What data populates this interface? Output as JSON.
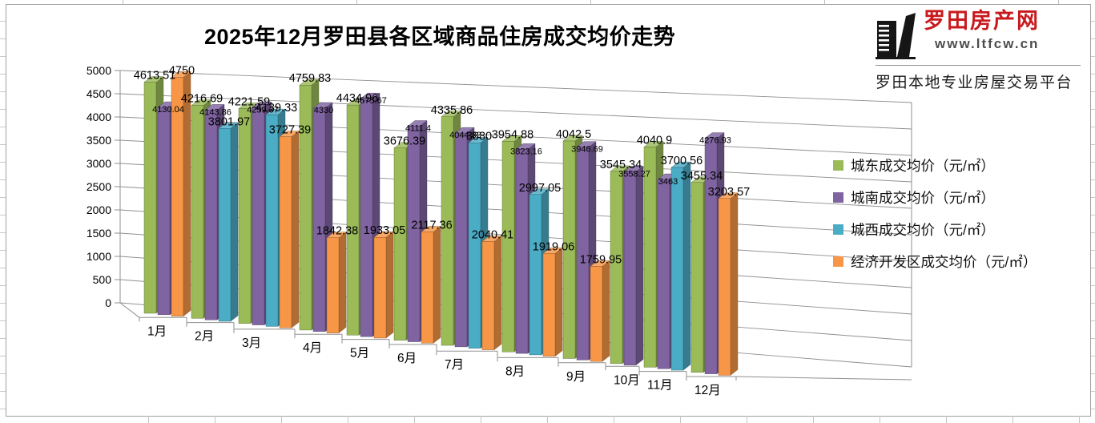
{
  "title": "2025年12月罗田县各区域商品住房成交均价走势",
  "logo": {
    "site_name": "罗田房产网",
    "url": "www.ltfcw.cn",
    "tagline": "罗田本地专业房屋交易平台",
    "brand_color": "#c8191d"
  },
  "chart_data": {
    "type": "bar",
    "subtype": "3d-clustered-column",
    "title": "2025年12月罗田县各区域商品住房成交均价走势",
    "xlabel": "",
    "ylabel": "",
    "ylim": [
      0,
      5000
    ],
    "ytick_step": 500,
    "yticks": [
      "0",
      "500",
      "1000",
      "1500",
      "2000",
      "2500",
      "3000",
      "3500",
      "4000",
      "4500",
      "5000"
    ],
    "grid": true,
    "legend_position": "right",
    "categories": [
      "1月",
      "2月",
      "3月",
      "4月",
      "5月",
      "6月",
      "7月",
      "8月",
      "9月",
      "10月",
      "11月",
      "12月"
    ],
    "series": [
      {
        "name": "城东成交均价（元/㎡）",
        "region": "城东",
        "color": "#9BBB59",
        "values": [
          4613.51,
          4216.69,
          4221.59,
          4759.83,
          4434.96,
          3676.39,
          4335.86,
          3954.88,
          4042.5,
          3545.34,
          4040.9,
          3455.34
        ],
        "labels": [
          "4613.51",
          "4216.69",
          "4221.59",
          "4759.83",
          "4434.96",
          "3676.39",
          "4335.86",
          "3954.88",
          "4042.5",
          "3545.34",
          "4040.9",
          "3455.34"
        ]
      },
      {
        "name": "城南成交均价（元/㎡）",
        "region": "城南",
        "color": "#8064A2",
        "values": [
          4130.04,
          4143.86,
          4259.37,
          4330,
          4575.67,
          4111.4,
          4044.82,
          3823.16,
          3946.69,
          3558.27,
          3463,
          4276.93
        ],
        "labels": [
          "4130.04",
          "4143.86",
          "4259.37",
          "4330",
          "4575.67",
          "4111.4",
          "4044.82",
          "3823.16",
          "3946.69",
          "3558.27",
          "3463",
          "4276.93"
        ]
      },
      {
        "name": "城西成交均价（元/㎡）",
        "region": "城西",
        "color": "#4BACC6",
        "values": [
          null,
          3801.97,
          4139.33,
          null,
          null,
          null,
          3880,
          2997.05,
          null,
          null,
          3700.56,
          null
        ],
        "labels": [
          null,
          "3801.97",
          "4139.33",
          null,
          null,
          null,
          "3880",
          "2997.05",
          null,
          null,
          "3700.56",
          null
        ]
      },
      {
        "name": "经济开发区成交均价（元/㎡）",
        "region": "经济开发区",
        "color": "#F79646",
        "values": [
          4750,
          null,
          3727.39,
          1842.38,
          1933.05,
          2117.36,
          2040.41,
          1919.06,
          1759.95,
          null,
          null,
          3203.57
        ],
        "labels": [
          "4750",
          null,
          "3727.39",
          "1842.38",
          "1933.05",
          "2117.36",
          "2040.41",
          "1919.06",
          "1759.95",
          null,
          null,
          "3203.57"
        ]
      }
    ]
  }
}
